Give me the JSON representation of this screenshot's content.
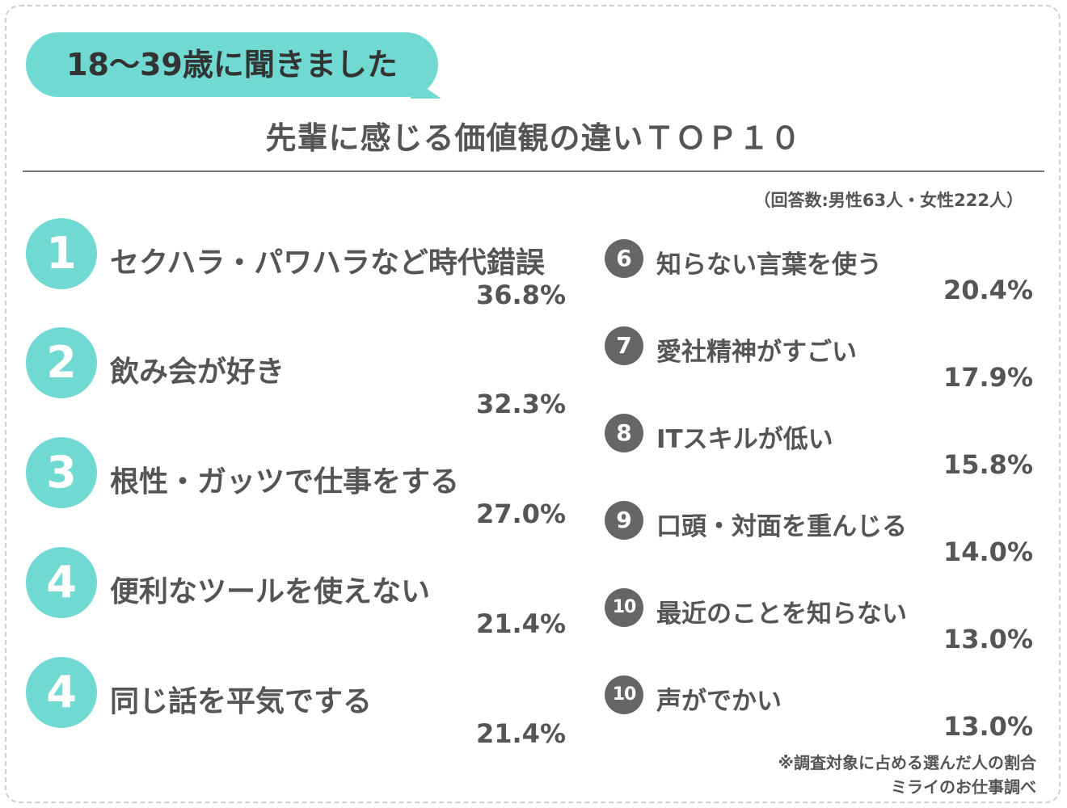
{
  "header": {
    "bubble_text": "18〜39歳に聞きました",
    "title": "先輩に感じる価値観の違いＴＯＰ１０",
    "respondents": "（回答数:男性63人・女性222人）"
  },
  "chart_data": {
    "type": "table",
    "title": "先輩に感じる価値観の違いＴＯＰ１０",
    "unit": "%",
    "items": [
      {
        "rank": "1",
        "label": "セクハラ・パワハラなど時代錯誤",
        "value": 36.8,
        "value_text": "36.8%"
      },
      {
        "rank": "2",
        "label": "飲み会が好き",
        "value": 32.3,
        "value_text": "32.3%"
      },
      {
        "rank": "3",
        "label": "根性・ガッツで仕事をする",
        "value": 27.0,
        "value_text": "27.0%"
      },
      {
        "rank": "4",
        "label": "便利なツールを使えない",
        "value": 21.4,
        "value_text": "21.4%"
      },
      {
        "rank": "4",
        "label": "同じ話を平気でする",
        "value": 21.4,
        "value_text": "21.4%"
      },
      {
        "rank": "6",
        "label": "知らない言葉を使う",
        "value": 20.4,
        "value_text": "20.4%"
      },
      {
        "rank": "7",
        "label": "愛社精神がすごい",
        "value": 17.9,
        "value_text": "17.9%"
      },
      {
        "rank": "8",
        "label": "ITスキルが低い",
        "value": 15.8,
        "value_text": "15.8%"
      },
      {
        "rank": "9",
        "label": "口頭・対面を重んじる",
        "value": 14.0,
        "value_text": "14.0%"
      },
      {
        "rank": "10",
        "label": "最近のことを知らない",
        "value": 13.0,
        "value_text": "13.0%"
      },
      {
        "rank": "10",
        "label": "声がでかい",
        "value": 13.0,
        "value_text": "13.0%"
      }
    ]
  },
  "footnote": {
    "note": "※調査対象に占める選んだ人の割合",
    "source": "ミライのお仕事調べ"
  },
  "colors": {
    "accent": "#6fd9d2",
    "rank_dark": "#666666",
    "text": "#555555"
  }
}
